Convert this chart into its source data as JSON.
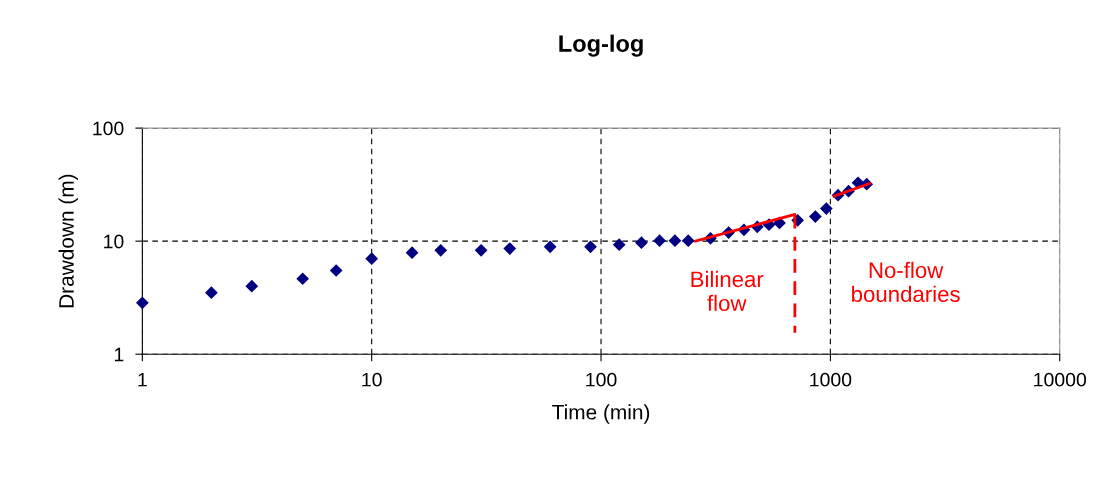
{
  "chart_data": {
    "type": "scatter",
    "title": "Log-log",
    "xlabel": "Time (min)",
    "ylabel": "Drawdown (m)",
    "log": "xy",
    "xlim": [
      1,
      10000
    ],
    "ylim": [
      1,
      100
    ],
    "xticks": [
      1,
      10,
      100,
      1000,
      10000
    ],
    "yticks": [
      1,
      10,
      100
    ],
    "grid": true,
    "legend": false,
    "series": [
      {
        "color": "#000080",
        "marker": "diamond",
        "x": [
          1,
          2,
          3,
          5,
          7,
          10,
          15,
          20,
          30,
          40,
          60,
          90,
          120,
          150,
          180,
          210,
          240,
          300,
          360,
          420,
          480,
          540,
          600,
          720,
          860,
          960,
          1080,
          1200,
          1320,
          1440
        ],
        "values": [
          2.85,
          3.5,
          4.0,
          4.65,
          5.5,
          7.0,
          7.9,
          8.3,
          8.3,
          8.6,
          8.9,
          8.9,
          9.3,
          9.7,
          10.1,
          10.1,
          10.1,
          10.6,
          11.9,
          12.6,
          13.4,
          14.0,
          14.5,
          15.3,
          16.5,
          19.4,
          25.5,
          27.7,
          32.8,
          31.9
        ]
      },
      {
        "type": "line",
        "color": "#ff0000",
        "line_style": "solid",
        "x": [
          258,
          698
        ],
        "values": [
          10.0,
          17.2
        ]
      },
      {
        "type": "line",
        "color": "#ff0000",
        "line_style": "solid",
        "x": [
          1038,
          1485
        ],
        "values": [
          25.0,
          32.4
        ]
      },
      {
        "type": "line",
        "color": "#ff0000",
        "line_style": "dashed",
        "x": [
          700,
          700
        ],
        "values": [
          17.2,
          1.55
        ]
      }
    ],
    "annotations": [
      "Bilinear\nflow",
      "No-flow\nboundaries"
    ]
  }
}
